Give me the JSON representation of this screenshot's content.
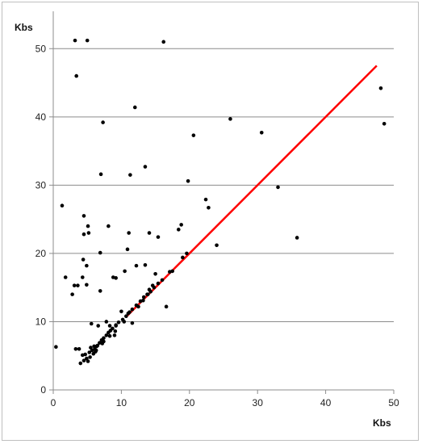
{
  "chart_data": {
    "type": "scatter",
    "title": "",
    "xlabel": "Kbs",
    "ylabel": "Kbs",
    "xlim": [
      0,
      50
    ],
    "ylim": [
      0,
      55
    ],
    "x_ticks": [
      "0",
      "10",
      "20",
      "30",
      "40",
      "50"
    ],
    "y_ticks": [
      "0",
      "10",
      "20",
      "30",
      "40",
      "50"
    ],
    "grid": "horizontal",
    "legend": "none",
    "series": [
      {
        "marker_color": "#000000",
        "points": [
          [
            3.2,
            51.2
          ],
          [
            5,
            51.2
          ],
          [
            16.2,
            51
          ],
          [
            3.4,
            46
          ],
          [
            12,
            41.4
          ],
          [
            7.3,
            39.2
          ],
          [
            26,
            39.7
          ],
          [
            20.6,
            37.3
          ],
          [
            30.6,
            37.7
          ],
          [
            48.1,
            44.2
          ],
          [
            48.6,
            39
          ],
          [
            13.5,
            32.7
          ],
          [
            7,
            31.6
          ],
          [
            11.3,
            31.5
          ],
          [
            19.8,
            30.6
          ],
          [
            33,
            29.7
          ],
          [
            1.3,
            27
          ],
          [
            22.4,
            27.9
          ],
          [
            22.8,
            26.7
          ],
          [
            4.5,
            25.5
          ],
          [
            5.1,
            24
          ],
          [
            8.1,
            24
          ],
          [
            4.5,
            22.8
          ],
          [
            5.2,
            23
          ],
          [
            11.1,
            23
          ],
          [
            14.1,
            23
          ],
          [
            15.4,
            22.4
          ],
          [
            18.4,
            23.5
          ],
          [
            18.8,
            24.2
          ],
          [
            35.8,
            22.3
          ],
          [
            24,
            21.2
          ],
          [
            6.9,
            20.1
          ],
          [
            10.9,
            20.6
          ],
          [
            1.8,
            16.5
          ],
          [
            4.4,
            19.1
          ],
          [
            4.9,
            18.2
          ],
          [
            10.5,
            17.4
          ],
          [
            12.2,
            18.2
          ],
          [
            13.5,
            18.3
          ],
          [
            3.1,
            15.3
          ],
          [
            3.6,
            15.3
          ],
          [
            4.9,
            15.4
          ],
          [
            4.3,
            16.5
          ],
          [
            8.8,
            16.5
          ],
          [
            9.2,
            16.4
          ],
          [
            2.8,
            14
          ],
          [
            6.9,
            14.5
          ],
          [
            13.9,
            14
          ],
          [
            15,
            17
          ],
          [
            19,
            19.4
          ],
          [
            19.6,
            20
          ],
          [
            16.6,
            12.2
          ],
          [
            17.5,
            17.4
          ],
          [
            5.6,
            9.7
          ],
          [
            6.6,
            9.4
          ],
          [
            7.8,
            10
          ],
          [
            8.3,
            9.4
          ],
          [
            10,
            11.5
          ],
          [
            11.6,
            9.8
          ],
          [
            9,
            8
          ],
          [
            9.2,
            9.4
          ],
          [
            3.3,
            6
          ],
          [
            3.8,
            6
          ],
          [
            0.4,
            6.3
          ],
          [
            4,
            3.9
          ],
          [
            4.5,
            4.3
          ],
          [
            4.9,
            4.6
          ],
          [
            4.3,
            5.1
          ],
          [
            4.7,
            5.2
          ],
          [
            5.3,
            5.5
          ],
          [
            5.7,
            5.8
          ],
          [
            6.1,
            6
          ],
          [
            6.4,
            6.4
          ],
          [
            6.8,
            6.9
          ],
          [
            7.1,
            7.3
          ],
          [
            7.4,
            7.6
          ],
          [
            7.8,
            8
          ],
          [
            8.1,
            8.4
          ],
          [
            8.4,
            8.7
          ],
          [
            8.7,
            9
          ],
          [
            9.2,
            9.5
          ],
          [
            9.6,
            9.9
          ],
          [
            10.2,
            10.3
          ],
          [
            10.7,
            10.8
          ],
          [
            11.2,
            11.4
          ],
          [
            11.6,
            11.8
          ],
          [
            12.2,
            12.4
          ],
          [
            12.8,
            13
          ],
          [
            13.3,
            13.6
          ],
          [
            13.8,
            14
          ],
          [
            14.3,
            14.4
          ],
          [
            14.8,
            15
          ],
          [
            15.4,
            15.6
          ],
          [
            16,
            16.1
          ],
          [
            5.1,
            4.2
          ],
          [
            5.4,
            4.8
          ],
          [
            5.9,
            5.3
          ],
          [
            6.2,
            5.6
          ],
          [
            6.5,
            6.5
          ],
          [
            7.2,
            6.8
          ],
          [
            7.4,
            7.1
          ],
          [
            5.5,
            6.2
          ],
          [
            6,
            6.4
          ],
          [
            6.3,
            5.8
          ],
          [
            8.3,
            7.9
          ],
          [
            9.1,
            8.6
          ],
          [
            10.4,
            10
          ],
          [
            11,
            11.2
          ],
          [
            12.5,
            12.2
          ],
          [
            13.2,
            13.1
          ],
          [
            14.1,
            14.7
          ],
          [
            14.6,
            15.3
          ],
          [
            17.1,
            17.3
          ]
        ]
      },
      {
        "type": "line",
        "line_color": "#ff0000",
        "x": [
          10.8,
          47.5
        ],
        "y": [
          10.8,
          47.5
        ]
      }
    ]
  }
}
